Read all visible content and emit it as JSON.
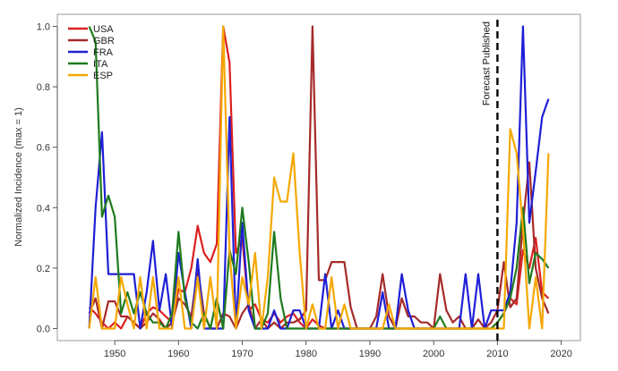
{
  "chart_data": {
    "type": "line",
    "title": "",
    "xlabel": "",
    "ylabel": "Normalized Incidence (max = 1)",
    "xlim": [
      1941,
      2023
    ],
    "ylim": [
      -0.04,
      1.04
    ],
    "xticks": [
      1950,
      1960,
      1970,
      1980,
      1990,
      2000,
      2010,
      2020
    ],
    "yticks": [
      0.0,
      0.2,
      0.4,
      0.6,
      0.8,
      1.0
    ],
    "ytick_labels": [
      "0.0",
      "0.2",
      "0.4",
      "0.6",
      "0.8",
      "1.0"
    ],
    "grid": false,
    "legend_position": "top-left",
    "annotation": {
      "x": 2010,
      "label": "Forecast Published",
      "style": "dashed-vertical-line"
    },
    "series": [
      {
        "name": "USA",
        "color": "#dc2020",
        "x": [
          1946,
          1947,
          1948,
          1949,
          1950,
          1951,
          1952,
          1953,
          1954,
          1955,
          1956,
          1957,
          1958,
          1959,
          1960,
          1961,
          1962,
          1963,
          1964,
          1965,
          1966,
          1967,
          1968,
          1969,
          1970,
          1971,
          1972,
          1973,
          1974,
          1975,
          1976,
          1977,
          1978,
          1979,
          1980,
          1981,
          1982,
          1983,
          1984,
          1985,
          1986,
          1987,
          1988,
          1989,
          1990,
          1991,
          1992,
          1993,
          1994,
          1995,
          1996,
          1997,
          1998,
          1999,
          2000,
          2001,
          2002,
          2003,
          2004,
          2005,
          2006,
          2007,
          2008,
          2009,
          2010,
          2011,
          2012,
          2013,
          2014,
          2015,
          2016,
          2017,
          2018
        ],
        "values": [
          0.07,
          0.05,
          0.02,
          0.0,
          0.02,
          0.0,
          0.04,
          0.02,
          0.0,
          0.05,
          0.07,
          0.06,
          0.04,
          0.02,
          0.13,
          0.12,
          0.2,
          0.34,
          0.25,
          0.22,
          0.28,
          1.0,
          0.88,
          0.25,
          0.3,
          0.06,
          0.08,
          0.03,
          0.02,
          0.05,
          0.02,
          0.04,
          0.05,
          0.02,
          0.0,
          0.03,
          0.01,
          0.0,
          0.0,
          0.0,
          0.0,
          0.0,
          0.0,
          0.0,
          0.0,
          0.0,
          0.0,
          0.0,
          0.0,
          0.0,
          0.0,
          0.0,
          0.0,
          0.0,
          0.0,
          0.0,
          0.0,
          0.0,
          0.0,
          0.0,
          0.0,
          0.0,
          0.0,
          0.0,
          0.02,
          0.05,
          0.1,
          0.08,
          0.26,
          0.2,
          0.3,
          0.12,
          0.1
        ]
      },
      {
        "name": "GBR",
        "color": "#a52a2a",
        "x": [
          1946,
          1947,
          1948,
          1949,
          1950,
          1951,
          1952,
          1953,
          1954,
          1955,
          1956,
          1957,
          1958,
          1959,
          1960,
          1961,
          1962,
          1963,
          1964,
          1965,
          1966,
          1967,
          1968,
          1969,
          1970,
          1971,
          1972,
          1973,
          1974,
          1975,
          1976,
          1977,
          1978,
          1979,
          1980,
          1981,
          1982,
          1983,
          1984,
          1985,
          1986,
          1987,
          1988,
          1989,
          1990,
          1991,
          1992,
          1993,
          1994,
          1995,
          1996,
          1997,
          1998,
          1999,
          2000,
          2001,
          2002,
          2003,
          2004,
          2005,
          2006,
          2007,
          2008,
          2009,
          2010,
          2011,
          2012,
          2013,
          2014,
          2015,
          2016,
          2017,
          2018
        ],
        "values": [
          0.05,
          0.1,
          0.0,
          0.09,
          0.09,
          0.04,
          0.04,
          0.02,
          0.0,
          0.02,
          0.05,
          0.03,
          0.0,
          0.02,
          0.1,
          0.08,
          0.04,
          0.2,
          0.05,
          0.0,
          0.0,
          0.05,
          0.04,
          0.0,
          0.05,
          0.08,
          0.0,
          0.03,
          0.0,
          0.02,
          0.0,
          0.02,
          0.02,
          0.03,
          0.06,
          1.0,
          0.16,
          0.16,
          0.22,
          0.22,
          0.22,
          0.07,
          0.0,
          0.0,
          0.0,
          0.04,
          0.18,
          0.04,
          0.0,
          0.1,
          0.04,
          0.04,
          0.02,
          0.02,
          0.0,
          0.18,
          0.06,
          0.02,
          0.04,
          0.0,
          0.0,
          0.03,
          0.0,
          0.02,
          0.06,
          0.22,
          0.07,
          0.1,
          0.35,
          0.55,
          0.2,
          0.1,
          0.05
        ]
      },
      {
        "name": "FRA",
        "color": "#1f1fd6",
        "x": [
          1946,
          1947,
          1948,
          1949,
          1950,
          1951,
          1952,
          1953,
          1954,
          1955,
          1956,
          1957,
          1958,
          1959,
          1960,
          1961,
          1962,
          1963,
          1964,
          1965,
          1966,
          1967,
          1968,
          1969,
          1970,
          1971,
          1972,
          1973,
          1974,
          1975,
          1976,
          1977,
          1978,
          1979,
          1980,
          1981,
          1982,
          1983,
          1984,
          1985,
          1986,
          1987,
          1988,
          1989,
          1990,
          1991,
          1992,
          1993,
          1994,
          1995,
          1996,
          1997,
          1998,
          1999,
          2000,
          2001,
          2002,
          2003,
          2004,
          2005,
          2006,
          2007,
          2008,
          2009,
          2010,
          2011,
          2012,
          2013,
          2014,
          2015,
          2016,
          2017,
          2018
        ],
        "values": [
          0.0,
          0.4,
          0.65,
          0.18,
          0.18,
          0.18,
          0.18,
          0.18,
          0.0,
          0.12,
          0.29,
          0.06,
          0.18,
          0.0,
          0.25,
          0.12,
          0.0,
          0.23,
          0.0,
          0.0,
          0.0,
          0.0,
          0.7,
          0.0,
          0.35,
          0.06,
          0.0,
          0.0,
          0.0,
          0.06,
          0.0,
          0.0,
          0.06,
          0.06,
          0.0,
          0.0,
          0.0,
          0.18,
          0.0,
          0.06,
          0.0,
          0.0,
          0.0,
          0.0,
          0.0,
          0.0,
          0.12,
          0.0,
          0.0,
          0.18,
          0.06,
          0.0,
          0.0,
          0.0,
          0.0,
          0.0,
          0.0,
          0.0,
          0.0,
          0.18,
          0.0,
          0.18,
          0.0,
          0.06,
          0.06,
          0.06,
          0.12,
          0.35,
          1.0,
          0.35,
          0.52,
          0.7,
          0.76
        ]
      },
      {
        "name": "ITA",
        "color": "#1e7a1e",
        "x": [
          1946,
          1947,
          1948,
          1949,
          1950,
          1951,
          1952,
          1953,
          1954,
          1955,
          1956,
          1957,
          1958,
          1959,
          1960,
          1961,
          1962,
          1963,
          1964,
          1965,
          1966,
          1967,
          1968,
          1969,
          1970,
          1971,
          1972,
          1973,
          1974,
          1975,
          1976,
          1977,
          1978,
          1979,
          1980,
          1981,
          1982,
          1983,
          1984,
          1985,
          1986,
          1987,
          1988,
          1989,
          1990,
          1991,
          1992,
          1993,
          1994,
          1995,
          1996,
          1997,
          1998,
          1999,
          2000,
          2001,
          2002,
          2003,
          2004,
          2005,
          2006,
          2007,
          2008,
          2009,
          2010,
          2011,
          2012,
          2013,
          2014,
          2015,
          2016,
          2017,
          2018
        ],
        "values": [
          1.0,
          0.95,
          0.37,
          0.44,
          0.37,
          0.05,
          0.12,
          0.05,
          0.12,
          0.05,
          0.02,
          0.02,
          0.0,
          0.05,
          0.32,
          0.1,
          0.02,
          0.0,
          0.05,
          0.0,
          0.1,
          0.0,
          0.26,
          0.18,
          0.4,
          0.22,
          0.0,
          0.0,
          0.05,
          0.32,
          0.1,
          0.0,
          0.0,
          0.0,
          0.0,
          0.0,
          0.0,
          0.0,
          0.0,
          0.0,
          0.0,
          0.0,
          0.0,
          0.0,
          0.0,
          0.0,
          0.0,
          0.0,
          0.0,
          0.0,
          0.0,
          0.0,
          0.0,
          0.0,
          0.0,
          0.04,
          0.0,
          0.0,
          0.0,
          0.0,
          0.0,
          0.0,
          0.0,
          0.0,
          0.02,
          0.05,
          0.1,
          0.2,
          0.4,
          0.15,
          0.25,
          0.23,
          0.2
        ]
      },
      {
        "name": "ESP",
        "color": "#f5a800",
        "x": [
          1946,
          1947,
          1948,
          1949,
          1950,
          1951,
          1952,
          1953,
          1954,
          1955,
          1956,
          1957,
          1958,
          1959,
          1960,
          1961,
          1962,
          1963,
          1964,
          1965,
          1966,
          1967,
          1968,
          1969,
          1970,
          1971,
          1972,
          1973,
          1974,
          1975,
          1976,
          1977,
          1978,
          1979,
          1980,
          1981,
          1982,
          1983,
          1984,
          1985,
          1986,
          1987,
          1988,
          1989,
          1990,
          1991,
          1992,
          1993,
          1994,
          1995,
          1996,
          1997,
          1998,
          1999,
          2000,
          2001,
          2002,
          2003,
          2004,
          2005,
          2006,
          2007,
          2008,
          2009,
          2010,
          2011,
          2012,
          2013,
          2014,
          2015,
          2016,
          2017,
          2018
        ],
        "values": [
          0.0,
          0.17,
          0.0,
          0.0,
          0.0,
          0.17,
          0.08,
          0.0,
          0.17,
          0.0,
          0.17,
          0.0,
          0.0,
          0.0,
          0.17,
          0.0,
          0.0,
          0.17,
          0.0,
          0.17,
          0.0,
          1.0,
          0.25,
          0.0,
          0.17,
          0.08,
          0.25,
          0.0,
          0.17,
          0.5,
          0.42,
          0.42,
          0.58,
          0.25,
          0.0,
          0.08,
          0.0,
          0.0,
          0.17,
          0.0,
          0.08,
          0.0,
          0.0,
          0.0,
          0.0,
          0.0,
          0.0,
          0.08,
          0.0,
          0.0,
          0.0,
          0.0,
          0.0,
          0.0,
          0.0,
          0.0,
          0.0,
          0.0,
          0.0,
          0.0,
          0.0,
          0.0,
          0.0,
          0.0,
          0.0,
          0.0,
          0.66,
          0.58,
          0.33,
          0.0,
          0.17,
          0.0,
          0.58
        ]
      }
    ]
  }
}
